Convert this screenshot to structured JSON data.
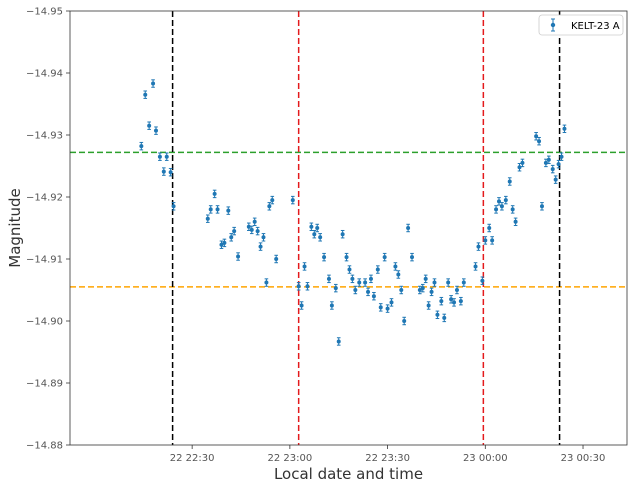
{
  "chart_data": {
    "type": "scatter",
    "title": "",
    "xlabel": "Local date and time",
    "ylabel": "Magnitude",
    "x_unit": "minutes after 22 22:00",
    "xlim": [
      -5,
      52
    ],
    "ylim": [
      -14.95,
      -14.88
    ],
    "y_inverted": true,
    "grid": false,
    "legend_position": "top-right",
    "xticks": [
      {
        "x": 7.5,
        "label": "22 22:30"
      },
      {
        "x": 17.5,
        "label": "22 23:00"
      },
      {
        "x": 27.5,
        "label": "22 23:30"
      },
      {
        "x": 37.5,
        "label": "23 00:00"
      },
      {
        "x": 47.5,
        "label": "23 00:30"
      }
    ],
    "yticks": [
      {
        "y": -14.95,
        "label": "−14.95"
      },
      {
        "y": -14.94,
        "label": "−14.94"
      },
      {
        "y": -14.93,
        "label": "−14.93"
      },
      {
        "y": -14.92,
        "label": "−14.92"
      },
      {
        "y": -14.91,
        "label": "−14.91"
      },
      {
        "y": -14.9,
        "label": "−14.90"
      },
      {
        "y": -14.89,
        "label": "−14.89"
      },
      {
        "y": -14.88,
        "label": "−14.88"
      }
    ],
    "series": [
      {
        "name": "KELT-23 A",
        "color": "#1f77b4",
        "yerr": 0.0006,
        "points": [
          [
            2.3,
            -14.9282
          ],
          [
            2.7,
            -14.9365
          ],
          [
            3.1,
            -14.9315
          ],
          [
            3.5,
            -14.9383
          ],
          [
            3.8,
            -14.9307
          ],
          [
            4.2,
            -14.9265
          ],
          [
            4.6,
            -14.9241
          ],
          [
            4.9,
            -14.9265
          ],
          [
            5.3,
            -14.924
          ],
          [
            5.6,
            -14.9185
          ],
          [
            9.1,
            -14.9165
          ],
          [
            9.4,
            -14.918
          ],
          [
            9.8,
            -14.9205
          ],
          [
            10.1,
            -14.918
          ],
          [
            10.5,
            -14.9123
          ],
          [
            10.8,
            -14.9126
          ],
          [
            11.2,
            -14.9178
          ],
          [
            11.5,
            -14.9135
          ],
          [
            11.8,
            -14.9145
          ],
          [
            12.2,
            -14.9104
          ],
          [
            13.3,
            -14.9152
          ],
          [
            13.6,
            -14.9147
          ],
          [
            13.9,
            -14.916
          ],
          [
            14.2,
            -14.9145
          ],
          [
            14.5,
            -14.912
          ],
          [
            14.8,
            -14.9135
          ],
          [
            15.1,
            -14.9062
          ],
          [
            15.4,
            -14.9185
          ],
          [
            15.7,
            -14.9195
          ],
          [
            16.1,
            -14.91
          ],
          [
            17.8,
            -14.9195
          ],
          [
            18.4,
            -14.9056
          ],
          [
            18.7,
            -14.9025
          ],
          [
            19.0,
            -14.9088
          ],
          [
            19.3,
            -14.9056
          ],
          [
            19.7,
            -14.9152
          ],
          [
            20.0,
            -14.914
          ],
          [
            20.3,
            -14.915
          ],
          [
            20.6,
            -14.9135
          ],
          [
            21.0,
            -14.9103
          ],
          [
            21.5,
            -14.9068
          ],
          [
            21.8,
            -14.9025
          ],
          [
            22.2,
            -14.9053
          ],
          [
            22.5,
            -14.8967
          ],
          [
            22.9,
            -14.914
          ],
          [
            23.3,
            -14.9103
          ],
          [
            23.6,
            -14.9083
          ],
          [
            23.9,
            -14.9068
          ],
          [
            24.2,
            -14.905
          ],
          [
            24.6,
            -14.9062
          ],
          [
            25.2,
            -14.9062
          ],
          [
            25.5,
            -14.9047
          ],
          [
            25.8,
            -14.9068
          ],
          [
            26.1,
            -14.904
          ],
          [
            26.5,
            -14.9083
          ],
          [
            26.8,
            -14.9022
          ],
          [
            27.2,
            -14.9103
          ],
          [
            27.5,
            -14.902
          ],
          [
            27.9,
            -14.903
          ],
          [
            28.3,
            -14.9088
          ],
          [
            28.6,
            -14.9075
          ],
          [
            28.9,
            -14.905
          ],
          [
            29.2,
            -14.9
          ],
          [
            29.6,
            -14.915
          ],
          [
            30.0,
            -14.9103
          ],
          [
            30.8,
            -14.905
          ],
          [
            31.1,
            -14.9053
          ],
          [
            31.4,
            -14.9068
          ],
          [
            31.7,
            -14.9025
          ],
          [
            32.0,
            -14.9047
          ],
          [
            32.3,
            -14.9062
          ],
          [
            32.6,
            -14.901
          ],
          [
            33.0,
            -14.9032
          ],
          [
            33.3,
            -14.9005
          ],
          [
            33.7,
            -14.9062
          ],
          [
            34.0,
            -14.9035
          ],
          [
            34.3,
            -14.903
          ],
          [
            34.6,
            -14.905
          ],
          [
            35.0,
            -14.9032
          ],
          [
            35.3,
            -14.9062
          ],
          [
            36.5,
            -14.9088
          ],
          [
            36.8,
            -14.912
          ],
          [
            37.2,
            -14.9065
          ],
          [
            37.5,
            -14.913
          ],
          [
            37.9,
            -14.915
          ],
          [
            38.2,
            -14.913
          ],
          [
            38.6,
            -14.918
          ],
          [
            38.9,
            -14.9193
          ],
          [
            39.2,
            -14.9185
          ],
          [
            39.6,
            -14.9195
          ],
          [
            40.0,
            -14.9225
          ],
          [
            40.3,
            -14.918
          ],
          [
            40.6,
            -14.916
          ],
          [
            41.0,
            -14.9248
          ],
          [
            41.3,
            -14.9255
          ],
          [
            42.7,
            -14.9298
          ],
          [
            43.0,
            -14.929
          ],
          [
            43.3,
            -14.9185
          ],
          [
            43.7,
            -14.9255
          ],
          [
            44.0,
            -14.926
          ],
          [
            44.4,
            -14.9245
          ],
          [
            44.7,
            -14.9228
          ],
          [
            45.0,
            -14.9253
          ],
          [
            45.3,
            -14.9265
          ],
          [
            45.6,
            -14.931
          ]
        ]
      }
    ],
    "vertical_lines": [
      {
        "x": 5.5,
        "color": "#000000",
        "style": "dashed"
      },
      {
        "x": 18.4,
        "color": "#e41a1c",
        "style": "dashed"
      },
      {
        "x": 37.3,
        "color": "#e41a1c",
        "style": "dashed"
      },
      {
        "x": 45.1,
        "color": "#000000",
        "style": "dashed"
      }
    ],
    "horizontal_lines": [
      {
        "y": -14.9272,
        "color": "#2ca02c",
        "style": "dashed"
      },
      {
        "y": -14.9055,
        "color": "#ffa500",
        "style": "dashed"
      }
    ]
  }
}
